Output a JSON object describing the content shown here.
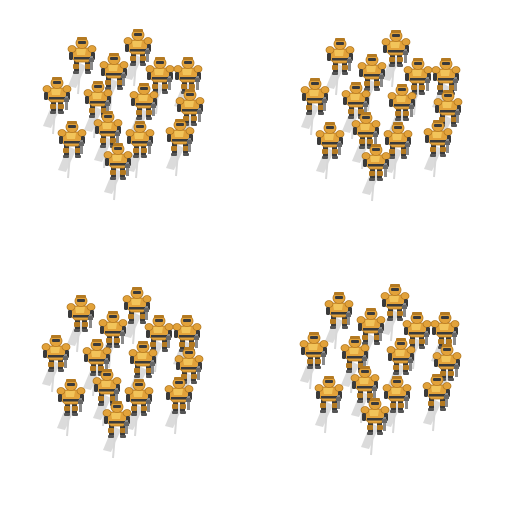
{
  "sprite_sheet": {
    "frames": [
      {
        "id": "frame-1",
        "unit_name": "mech-soldier-icon",
        "unit_count": 14
      },
      {
        "id": "frame-2",
        "unit_name": "mech-soldier-icon",
        "unit_count": 14
      },
      {
        "id": "frame-3",
        "unit_name": "mech-soldier-icon",
        "unit_count": 14
      },
      {
        "id": "frame-4",
        "unit_name": "mech-soldier-icon",
        "unit_count": 14
      }
    ],
    "colors": {
      "background": "#ffffff",
      "armor": "#e2a23a",
      "armor_light": "#f2c45a",
      "armor_dark": "#b47a22",
      "joints": "#3a3a3a",
      "metal": "#8a8a8a",
      "shadow": "#cfcfcf"
    }
  }
}
